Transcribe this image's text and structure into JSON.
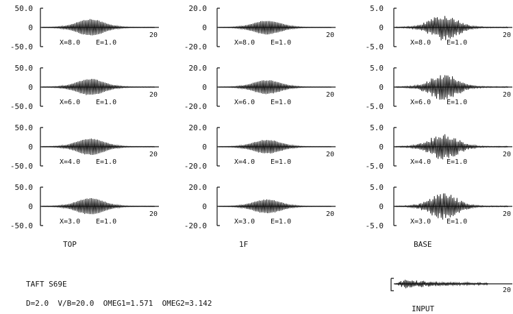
{
  "chart_data": {
    "type": "line",
    "x_end_label": "20",
    "columns": [
      {
        "label": "TOP",
        "ylim": [
          -50,
          50
        ],
        "ticks": [
          "50.0",
          "0",
          "-50.0"
        ],
        "peak": 22
      },
      {
        "label": "1F",
        "ylim": [
          -20,
          20
        ],
        "ticks": [
          "20.0",
          "0",
          "-20.0"
        ],
        "peak": 7.5
      },
      {
        "label": "BASE",
        "ylim": [
          -5,
          5
        ],
        "ticks": [
          "5.0",
          "0",
          "-5.0"
        ],
        "peak": 3.5
      }
    ],
    "rows": [
      {
        "x": "X=8.0",
        "e": "E=1.0"
      },
      {
        "x": "X=6.0",
        "e": "E=1.0"
      },
      {
        "x": "X=4.0",
        "e": "E=1.0"
      },
      {
        "x": "X=3.0",
        "e": "E=1.0"
      }
    ],
    "input": {
      "label": "INPUT",
      "x_end_label": "20"
    }
  },
  "footer": {
    "title": "TAFT S69E",
    "params": "D=2.0  V/B=20.0  OMEG1=1.571  OMEG2=3.142"
  }
}
